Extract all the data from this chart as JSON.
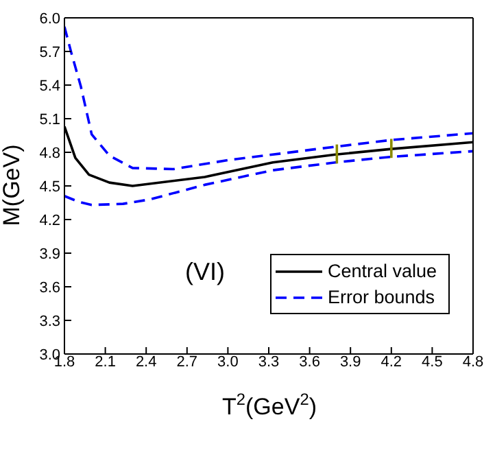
{
  "chart_data": {
    "type": "line",
    "xlabel": "T$^{2}$(GeV$^{2}$)",
    "ylabel": "M(GeV)",
    "annotations": [
      "(VI)"
    ],
    "xlim": [
      1.8,
      4.8
    ],
    "xticks": [
      1.8,
      2.1,
      2.4,
      2.7,
      {
        "value": 3,
        "label": "3.0"
      },
      3.3,
      3.6,
      3.9,
      4.2,
      4.5,
      4.8
    ],
    "ylim": [
      3.0,
      6.0
    ],
    "yticks": [
      {
        "value": 3,
        "label": "3.0"
      },
      3.3,
      3.6,
      3.9,
      4.2,
      4.5,
      4.8,
      5.1,
      5.4,
      5.7,
      {
        "value": 6,
        "label": "6.0"
      }
    ],
    "legend": "bottom right",
    "marker": "none",
    "series": [
      {
        "name": "Central value",
        "color": "#000000",
        "line_style": "solid",
        "x": [
          1.8,
          1.88,
          1.98,
          2.13,
          2.3,
          2.83,
          3.33,
          3.79,
          4.2,
          4.8
        ],
        "values": [
          5.03,
          4.75,
          4.6,
          4.53,
          4.5,
          4.58,
          4.71,
          4.78,
          4.83,
          4.89
        ]
      },
      {
        "name": "Error bounds",
        "color": "#0000ff",
        "line_style": "dashed",
        "x": [
          1.8,
          1.85,
          1.92,
          2.0,
          2.13,
          2.3,
          2.6,
          3.0,
          3.79,
          4.2,
          4.8
        ],
        "values": [
          5.92,
          5.69,
          5.39,
          4.96,
          4.77,
          4.66,
          4.65,
          4.73,
          4.85,
          4.91,
          4.97
        ]
      },
      {
        "color": "#0000ff",
        "line_style": "dashed",
        "x": [
          1.8,
          1.9,
          2.0,
          2.23,
          2.43,
          2.83,
          3.33,
          3.79,
          4.2,
          4.8
        ],
        "values": [
          4.41,
          4.36,
          4.33,
          4.34,
          4.38,
          4.51,
          4.64,
          4.71,
          4.76,
          4.81
        ]
      },
      {
        "color": "#8b8b00",
        "line_style": "solid",
        "x": [
          3.8,
          3.8
        ],
        "values": [
          4.7,
          4.87
        ]
      },
      {
        "color": "#8b8b00",
        "line_style": "solid",
        "x": [
          4.2,
          4.2
        ],
        "values": [
          4.75,
          4.92
        ]
      }
    ]
  }
}
